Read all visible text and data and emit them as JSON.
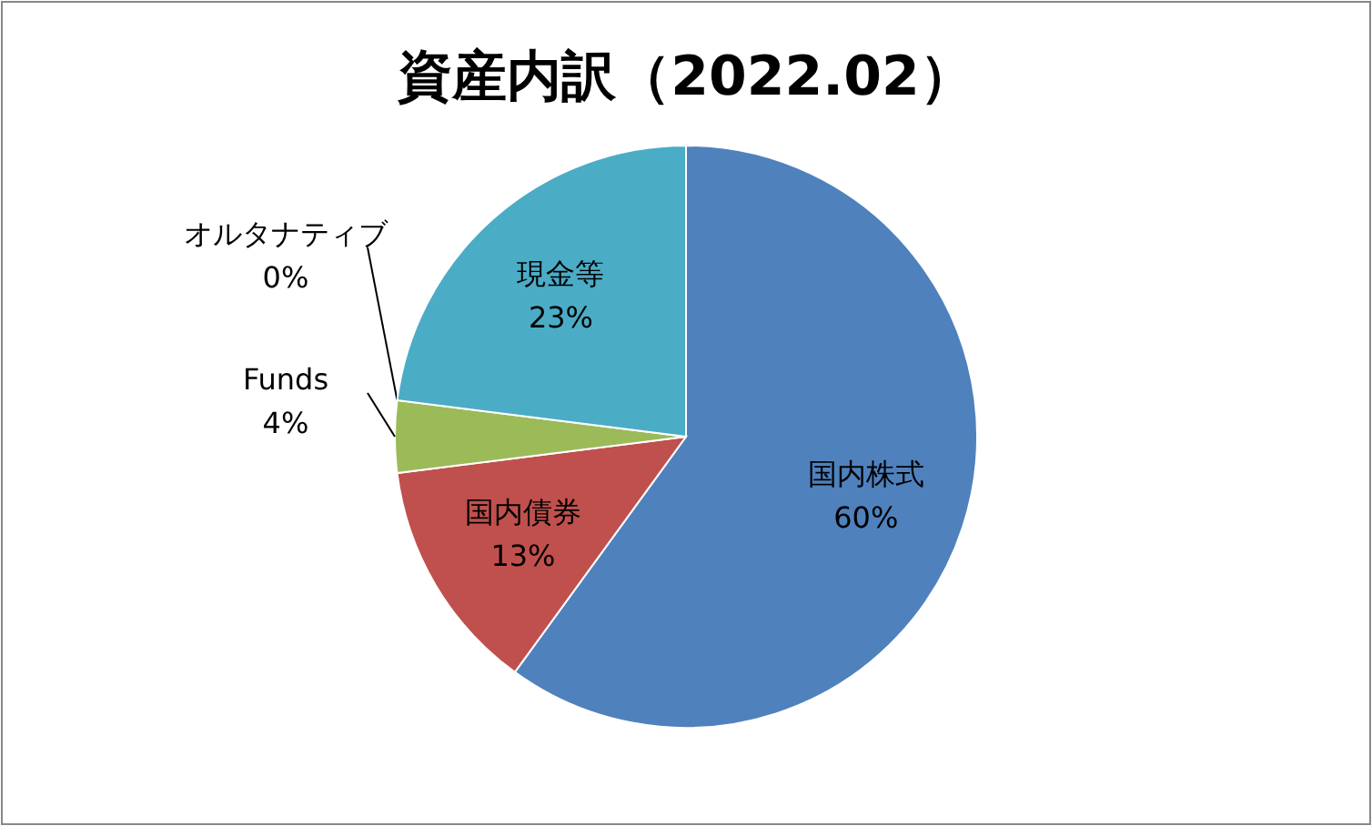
{
  "chart_data": {
    "type": "pie",
    "title": "資産内訳（2022.02）",
    "categories": [
      "国内株式",
      "国内債券",
      "Funds",
      "オルタナティブ",
      "現金等"
    ],
    "values": [
      60,
      13,
      4,
      0,
      23
    ],
    "colors": [
      "#4f81bd",
      "#c0504d",
      "#9bbb59",
      "#8064a2",
      "#4bacc6"
    ],
    "value_labels": [
      "60%",
      "13%",
      "4%",
      "0%",
      "23%"
    ],
    "legend": false
  }
}
